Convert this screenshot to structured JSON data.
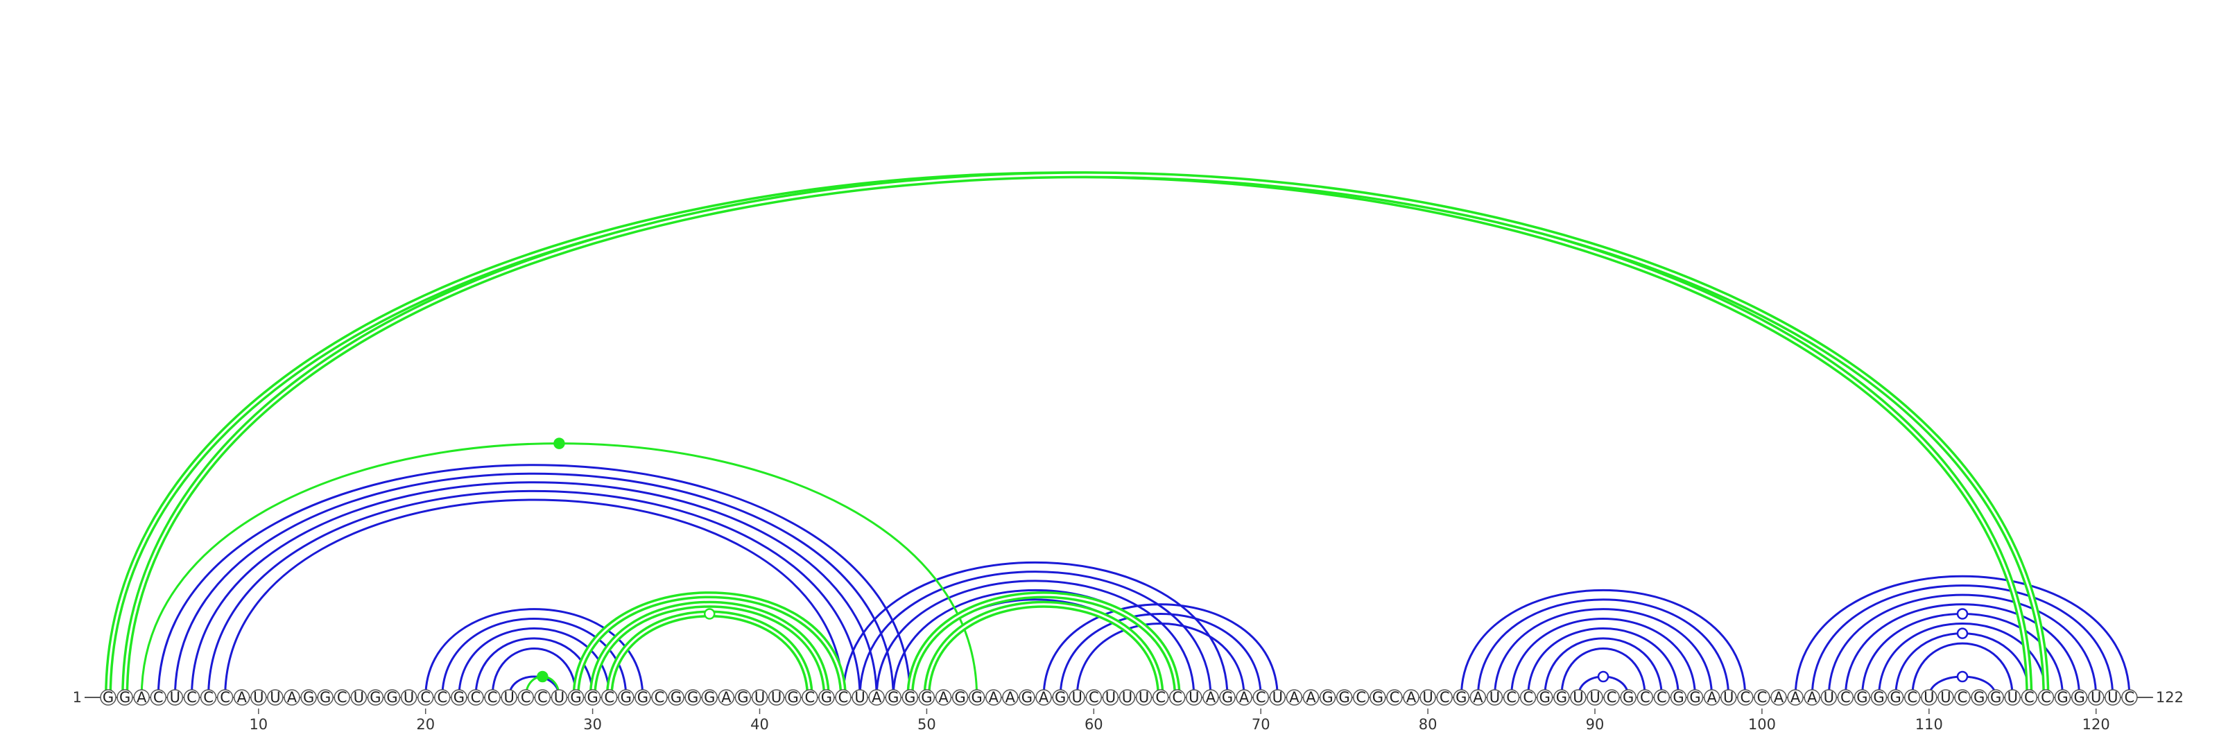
{
  "sequence": "GGACUCCCAUUAGGCUGGUCCGCCUCCUGGCGGCGGGAGUUGCGCUAGGGAGGAAGAGUCUUUCCUAGACUAAGGCGCAUCGAUCCGGUUCGCCGGAUCCAAAUCGGGCUUCGGUCCGGUUC",
  "start_label": "1",
  "end_label": "122",
  "tick_labels": [
    "10",
    "20",
    "30",
    "40",
    "50",
    "60",
    "70",
    "80",
    "90",
    "100",
    "110",
    "120"
  ],
  "colors": {
    "blue": "#1a1ad6",
    "green": "#22e822",
    "node_fill": "#ffffff",
    "node_stroke": "#555555"
  },
  "chart_data": {
    "type": "arc",
    "length": 122,
    "blue_pairs": [
      [
        4,
        49
      ],
      [
        5,
        48
      ],
      [
        6,
        47
      ],
      [
        7,
        46
      ],
      [
        8,
        45
      ],
      [
        20,
        33
      ],
      [
        21,
        32
      ],
      [
        22,
        31
      ],
      [
        23,
        30
      ],
      [
        24,
        29
      ],
      [
        25,
        28
      ],
      [
        45,
        68
      ],
      [
        46,
        67
      ],
      [
        47,
        66
      ],
      [
        48,
        65
      ],
      [
        49,
        64
      ],
      [
        57,
        71
      ],
      [
        58,
        70
      ],
      [
        59,
        69
      ],
      [
        82,
        99
      ],
      [
        83,
        98
      ],
      [
        84,
        97
      ],
      [
        85,
        96
      ],
      [
        86,
        95
      ],
      [
        87,
        94
      ],
      [
        88,
        93
      ],
      [
        89,
        92
      ],
      [
        102,
        122
      ],
      [
        103,
        121
      ],
      [
        104,
        120
      ],
      [
        105,
        119
      ],
      [
        106,
        118
      ],
      [
        107,
        117
      ],
      [
        108,
        116
      ],
      [
        109,
        115
      ],
      [
        110,
        114
      ]
    ],
    "green_pairs": [
      [
        1,
        116
      ],
      [
        2,
        117
      ],
      [
        3,
        53
      ],
      [
        26,
        28
      ],
      [
        29,
        45
      ],
      [
        30,
        44
      ],
      [
        31,
        43
      ],
      [
        49,
        65
      ],
      [
        50,
        64
      ]
    ],
    "double_arcs": [
      [
        1,
        116
      ],
      [
        2,
        117
      ],
      [
        29,
        45
      ],
      [
        30,
        44
      ],
      [
        31,
        43
      ],
      [
        49,
        65
      ],
      [
        50,
        64
      ]
    ],
    "arc_markers": [
      {
        "pair": [
          3,
          53
        ],
        "fill": "green"
      },
      {
        "pair": [
          26,
          28
        ],
        "fill": "green"
      },
      {
        "pair": [
          31,
          43
        ],
        "fill": "white",
        "stroke": "green"
      },
      {
        "pair": [
          89,
          92
        ],
        "fill": "white",
        "stroke": "blue"
      },
      {
        "pair": [
          106,
          118
        ],
        "fill": "white",
        "stroke": "blue"
      },
      {
        "pair": [
          108,
          116
        ],
        "fill": "white",
        "stroke": "blue"
      },
      {
        "pair": [
          110,
          114
        ],
        "fill": "white",
        "stroke": "blue"
      }
    ]
  }
}
